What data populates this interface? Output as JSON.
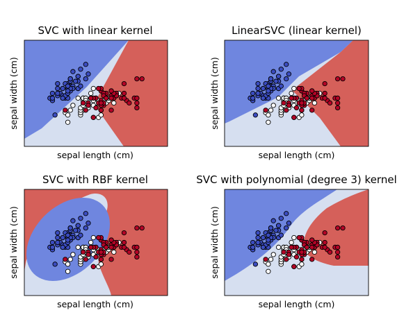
{
  "colors": {
    "class_0": "#3b4cc0",
    "class_1": "#ffffff",
    "class_2": "#b40426",
    "region_0": "#6f86df",
    "region_1": "#d6dff0",
    "region_2": "#d5605a",
    "frame": "#000000"
  },
  "chart_data": [
    {
      "type": "scatter",
      "title": "SVC with linear kernel",
      "xlabel": "sepal length (cm)",
      "ylabel": "sepal width (cm)",
      "xlim": [
        3.3,
        8.9
      ],
      "ylim": [
        1.0,
        5.4
      ],
      "ticks": "hidden",
      "background": "decision regions (3 classes)"
    },
    {
      "type": "scatter",
      "title": "LinearSVC (linear kernel)",
      "xlabel": "sepal length (cm)",
      "ylabel": "sepal width (cm)",
      "xlim": [
        3.3,
        8.9
      ],
      "ylim": [
        1.0,
        5.4
      ],
      "ticks": "hidden",
      "background": "decision regions (3 classes)"
    },
    {
      "type": "scatter",
      "title": "SVC with RBF kernel",
      "xlabel": "sepal length (cm)",
      "ylabel": "sepal width (cm)",
      "xlim": [
        3.3,
        8.9
      ],
      "ylim": [
        1.0,
        5.4
      ],
      "ticks": "hidden",
      "background": "decision regions (3 classes)"
    },
    {
      "type": "scatter",
      "title": "SVC with polynomial (degree 3) kernel",
      "xlabel": "sepal length (cm)",
      "ylabel": "sepal width (cm)",
      "xlim": [
        3.3,
        8.9
      ],
      "ylim": [
        1.0,
        5.4
      ],
      "ticks": "hidden",
      "background": "decision regions (3 classes)"
    }
  ],
  "points": [
    {
      "x": 5.1,
      "y": 3.5,
      "c": 0
    },
    {
      "x": 4.9,
      "y": 3.0,
      "c": 0
    },
    {
      "x": 4.7,
      "y": 3.2,
      "c": 0
    },
    {
      "x": 4.6,
      "y": 3.1,
      "c": 0
    },
    {
      "x": 5.0,
      "y": 3.6,
      "c": 0
    },
    {
      "x": 5.4,
      "y": 3.9,
      "c": 0
    },
    {
      "x": 4.6,
      "y": 3.4,
      "c": 0
    },
    {
      "x": 5.0,
      "y": 3.4,
      "c": 0
    },
    {
      "x": 4.4,
      "y": 2.9,
      "c": 0
    },
    {
      "x": 4.9,
      "y": 3.1,
      "c": 0
    },
    {
      "x": 5.4,
      "y": 3.7,
      "c": 0
    },
    {
      "x": 4.8,
      "y": 3.4,
      "c": 0
    },
    {
      "x": 4.8,
      "y": 3.0,
      "c": 0
    },
    {
      "x": 4.3,
      "y": 3.0,
      "c": 0
    },
    {
      "x": 5.8,
      "y": 4.0,
      "c": 0
    },
    {
      "x": 5.7,
      "y": 4.4,
      "c": 0
    },
    {
      "x": 5.4,
      "y": 3.9,
      "c": 0
    },
    {
      "x": 5.1,
      "y": 3.5,
      "c": 0
    },
    {
      "x": 5.7,
      "y": 3.8,
      "c": 0
    },
    {
      "x": 5.1,
      "y": 3.8,
      "c": 0
    },
    {
      "x": 5.4,
      "y": 3.4,
      "c": 0
    },
    {
      "x": 5.1,
      "y": 3.7,
      "c": 0
    },
    {
      "x": 4.6,
      "y": 3.6,
      "c": 0
    },
    {
      "x": 5.1,
      "y": 3.3,
      "c": 0
    },
    {
      "x": 4.8,
      "y": 3.4,
      "c": 0
    },
    {
      "x": 5.0,
      "y": 3.0,
      "c": 0
    },
    {
      "x": 5.0,
      "y": 3.4,
      "c": 0
    },
    {
      "x": 5.2,
      "y": 3.5,
      "c": 0
    },
    {
      "x": 5.2,
      "y": 3.4,
      "c": 0
    },
    {
      "x": 4.7,
      "y": 3.2,
      "c": 0
    },
    {
      "x": 4.8,
      "y": 3.1,
      "c": 0
    },
    {
      "x": 5.4,
      "y": 3.4,
      "c": 0
    },
    {
      "x": 5.2,
      "y": 4.1,
      "c": 0
    },
    {
      "x": 5.5,
      "y": 4.2,
      "c": 0
    },
    {
      "x": 4.9,
      "y": 3.1,
      "c": 0
    },
    {
      "x": 5.0,
      "y": 3.2,
      "c": 0
    },
    {
      "x": 5.5,
      "y": 3.5,
      "c": 0
    },
    {
      "x": 4.9,
      "y": 3.6,
      "c": 0
    },
    {
      "x": 4.4,
      "y": 3.0,
      "c": 0
    },
    {
      "x": 5.1,
      "y": 3.4,
      "c": 0
    },
    {
      "x": 5.0,
      "y": 3.5,
      "c": 0
    },
    {
      "x": 4.5,
      "y": 2.3,
      "c": 0
    },
    {
      "x": 4.4,
      "y": 3.2,
      "c": 0
    },
    {
      "x": 5.0,
      "y": 3.5,
      "c": 0
    },
    {
      "x": 5.1,
      "y": 3.8,
      "c": 0
    },
    {
      "x": 4.8,
      "y": 3.0,
      "c": 0
    },
    {
      "x": 5.1,
      "y": 3.8,
      "c": 0
    },
    {
      "x": 4.6,
      "y": 3.2,
      "c": 0
    },
    {
      "x": 5.3,
      "y": 3.7,
      "c": 0
    },
    {
      "x": 5.0,
      "y": 3.3,
      "c": 0
    },
    {
      "x": 7.0,
      "y": 3.2,
      "c": 1
    },
    {
      "x": 6.4,
      "y": 3.2,
      "c": 1
    },
    {
      "x": 6.9,
      "y": 3.1,
      "c": 1
    },
    {
      "x": 5.5,
      "y": 2.3,
      "c": 1
    },
    {
      "x": 6.5,
      "y": 2.8,
      "c": 1
    },
    {
      "x": 5.7,
      "y": 2.8,
      "c": 1
    },
    {
      "x": 6.3,
      "y": 3.3,
      "c": 1
    },
    {
      "x": 4.9,
      "y": 2.4,
      "c": 1
    },
    {
      "x": 6.6,
      "y": 2.9,
      "c": 1
    },
    {
      "x": 5.2,
      "y": 2.7,
      "c": 1
    },
    {
      "x": 5.0,
      "y": 2.0,
      "c": 1
    },
    {
      "x": 5.9,
      "y": 3.0,
      "c": 1
    },
    {
      "x": 6.0,
      "y": 2.2,
      "c": 1
    },
    {
      "x": 6.1,
      "y": 2.9,
      "c": 1
    },
    {
      "x": 5.6,
      "y": 2.9,
      "c": 1
    },
    {
      "x": 6.7,
      "y": 3.1,
      "c": 1
    },
    {
      "x": 5.6,
      "y": 3.0,
      "c": 1
    },
    {
      "x": 5.8,
      "y": 2.7,
      "c": 1
    },
    {
      "x": 6.2,
      "y": 2.2,
      "c": 1
    },
    {
      "x": 5.6,
      "y": 2.5,
      "c": 1
    },
    {
      "x": 5.9,
      "y": 3.2,
      "c": 1
    },
    {
      "x": 6.1,
      "y": 2.8,
      "c": 1
    },
    {
      "x": 6.3,
      "y": 2.5,
      "c": 1
    },
    {
      "x": 6.1,
      "y": 2.8,
      "c": 1
    },
    {
      "x": 6.4,
      "y": 2.9,
      "c": 1
    },
    {
      "x": 6.6,
      "y": 3.0,
      "c": 1
    },
    {
      "x": 6.8,
      "y": 2.8,
      "c": 1
    },
    {
      "x": 6.7,
      "y": 3.0,
      "c": 1
    },
    {
      "x": 6.0,
      "y": 2.9,
      "c": 1
    },
    {
      "x": 5.7,
      "y": 2.6,
      "c": 1
    },
    {
      "x": 5.5,
      "y": 2.4,
      "c": 1
    },
    {
      "x": 5.5,
      "y": 2.4,
      "c": 1
    },
    {
      "x": 5.8,
      "y": 2.7,
      "c": 1
    },
    {
      "x": 6.0,
      "y": 2.7,
      "c": 1
    },
    {
      "x": 5.4,
      "y": 3.0,
      "c": 1
    },
    {
      "x": 6.0,
      "y": 3.4,
      "c": 1
    },
    {
      "x": 6.7,
      "y": 3.1,
      "c": 1
    },
    {
      "x": 6.3,
      "y": 2.3,
      "c": 1
    },
    {
      "x": 5.6,
      "y": 3.0,
      "c": 1
    },
    {
      "x": 5.5,
      "y": 2.5,
      "c": 1
    },
    {
      "x": 5.5,
      "y": 2.6,
      "c": 1
    },
    {
      "x": 6.1,
      "y": 3.0,
      "c": 1
    },
    {
      "x": 5.8,
      "y": 2.6,
      "c": 1
    },
    {
      "x": 5.0,
      "y": 2.3,
      "c": 1
    },
    {
      "x": 5.6,
      "y": 2.7,
      "c": 1
    },
    {
      "x": 5.7,
      "y": 3.0,
      "c": 1
    },
    {
      "x": 5.7,
      "y": 2.9,
      "c": 1
    },
    {
      "x": 6.2,
      "y": 2.9,
      "c": 1
    },
    {
      "x": 5.1,
      "y": 2.5,
      "c": 1
    },
    {
      "x": 5.7,
      "y": 2.8,
      "c": 1
    },
    {
      "x": 6.3,
      "y": 3.3,
      "c": 2
    },
    {
      "x": 5.8,
      "y": 2.7,
      "c": 2
    },
    {
      "x": 7.1,
      "y": 3.0,
      "c": 2
    },
    {
      "x": 6.3,
      "y": 2.9,
      "c": 2
    },
    {
      "x": 6.5,
      "y": 3.0,
      "c": 2
    },
    {
      "x": 7.6,
      "y": 3.0,
      "c": 2
    },
    {
      "x": 4.9,
      "y": 2.5,
      "c": 2
    },
    {
      "x": 7.3,
      "y": 2.9,
      "c": 2
    },
    {
      "x": 6.7,
      "y": 2.5,
      "c": 2
    },
    {
      "x": 7.2,
      "y": 3.6,
      "c": 2
    },
    {
      "x": 6.5,
      "y": 3.2,
      "c": 2
    },
    {
      "x": 6.4,
      "y": 2.7,
      "c": 2
    },
    {
      "x": 6.8,
      "y": 3.0,
      "c": 2
    },
    {
      "x": 5.7,
      "y": 2.5,
      "c": 2
    },
    {
      "x": 5.8,
      "y": 2.8,
      "c": 2
    },
    {
      "x": 6.4,
      "y": 3.2,
      "c": 2
    },
    {
      "x": 6.5,
      "y": 3.0,
      "c": 2
    },
    {
      "x": 7.7,
      "y": 3.8,
      "c": 2
    },
    {
      "x": 7.7,
      "y": 2.6,
      "c": 2
    },
    {
      "x": 6.0,
      "y": 2.2,
      "c": 2
    },
    {
      "x": 6.9,
      "y": 3.2,
      "c": 2
    },
    {
      "x": 5.6,
      "y": 2.8,
      "c": 2
    },
    {
      "x": 7.7,
      "y": 2.8,
      "c": 2
    },
    {
      "x": 6.3,
      "y": 2.7,
      "c": 2
    },
    {
      "x": 6.7,
      "y": 3.3,
      "c": 2
    },
    {
      "x": 7.2,
      "y": 3.2,
      "c": 2
    },
    {
      "x": 6.2,
      "y": 2.8,
      "c": 2
    },
    {
      "x": 6.1,
      "y": 3.0,
      "c": 2
    },
    {
      "x": 6.4,
      "y": 2.8,
      "c": 2
    },
    {
      "x": 7.2,
      "y": 3.0,
      "c": 2
    },
    {
      "x": 7.4,
      "y": 2.8,
      "c": 2
    },
    {
      "x": 7.9,
      "y": 3.8,
      "c": 2
    },
    {
      "x": 6.4,
      "y": 2.8,
      "c": 2
    },
    {
      "x": 6.3,
      "y": 2.8,
      "c": 2
    },
    {
      "x": 6.1,
      "y": 2.6,
      "c": 2
    },
    {
      "x": 7.7,
      "y": 3.0,
      "c": 2
    },
    {
      "x": 6.3,
      "y": 3.4,
      "c": 2
    },
    {
      "x": 6.4,
      "y": 3.1,
      "c": 2
    },
    {
      "x": 6.0,
      "y": 3.0,
      "c": 2
    },
    {
      "x": 6.9,
      "y": 3.1,
      "c": 2
    },
    {
      "x": 6.7,
      "y": 3.1,
      "c": 2
    },
    {
      "x": 6.9,
      "y": 3.1,
      "c": 2
    },
    {
      "x": 5.8,
      "y": 2.7,
      "c": 2
    },
    {
      "x": 6.8,
      "y": 3.2,
      "c": 2
    },
    {
      "x": 6.7,
      "y": 3.3,
      "c": 2
    },
    {
      "x": 6.7,
      "y": 3.0,
      "c": 2
    },
    {
      "x": 6.3,
      "y": 2.5,
      "c": 2
    },
    {
      "x": 6.5,
      "y": 3.0,
      "c": 2
    },
    {
      "x": 6.2,
      "y": 3.4,
      "c": 2
    },
    {
      "x": 5.9,
      "y": 3.0,
      "c": 2
    }
  ]
}
